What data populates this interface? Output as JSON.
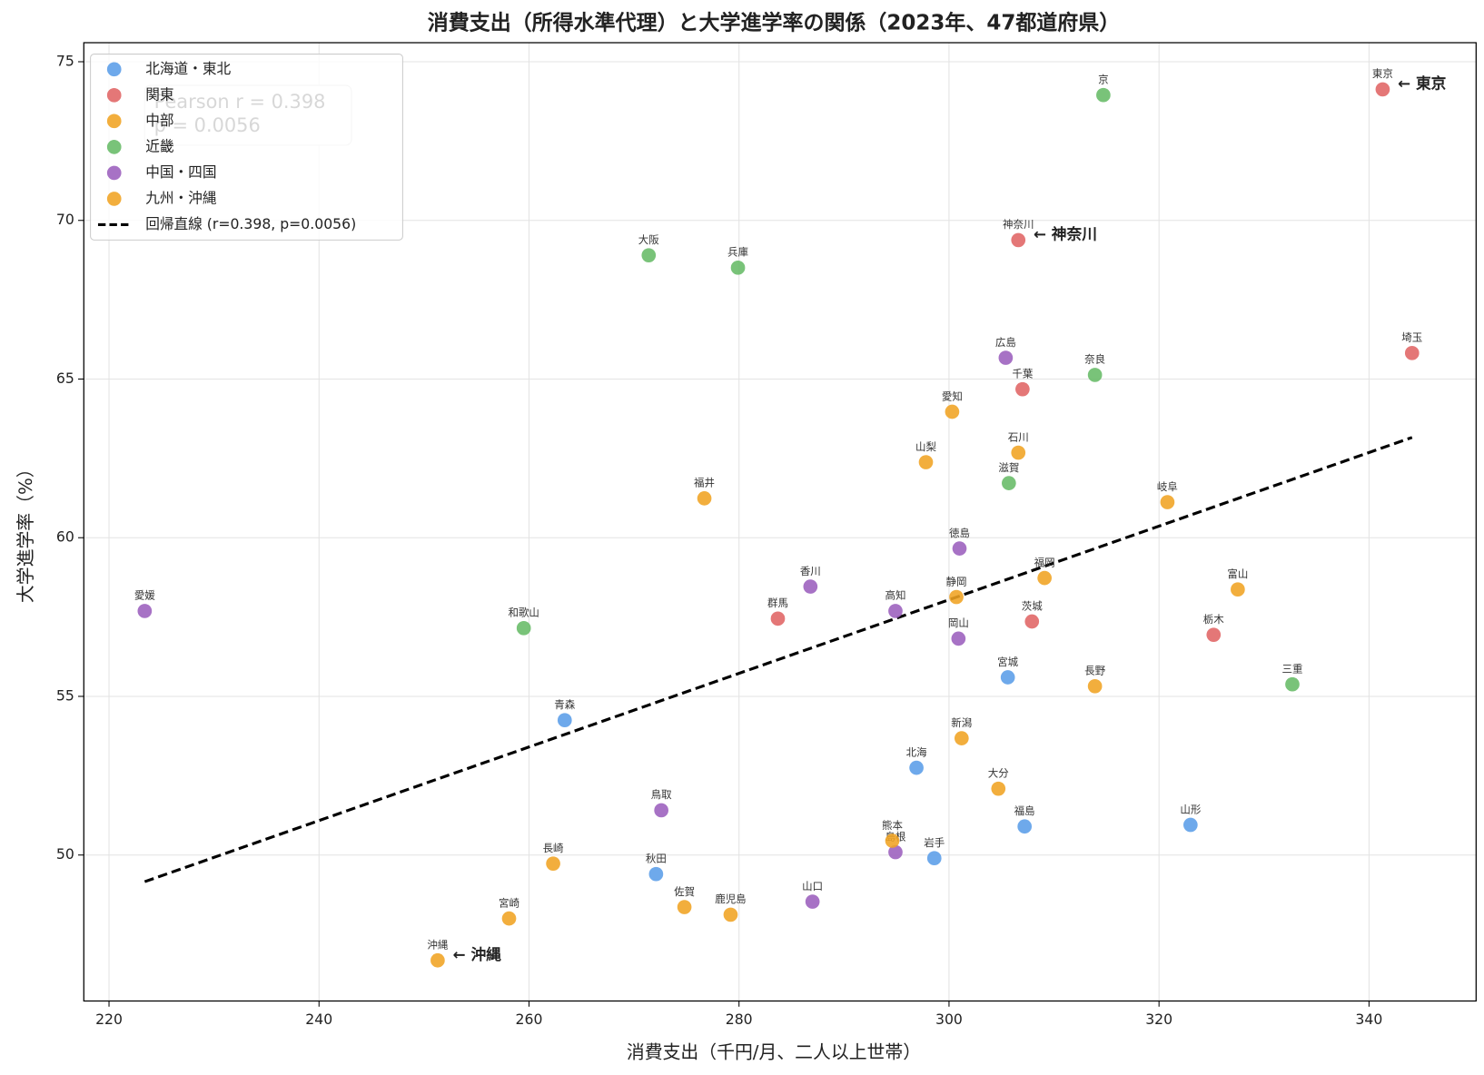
{
  "chart_data": {
    "type": "scatter",
    "title": "消費支出（所得水準代理）と大学進学率の関係（2023年、47都道府県）",
    "x_label": "消費支出（千円/月、二人以上世帯）",
    "y_label": "大学進学率（%）",
    "xlim": [
      217.6,
      350.2
    ],
    "ylim": [
      45.4,
      75.6
    ],
    "xticks": [
      220,
      240,
      260,
      280,
      300,
      320,
      340
    ],
    "yticks": [
      50,
      55,
      60,
      65,
      70,
      75
    ],
    "grid": true,
    "legend": "upper left",
    "series": [
      {
        "name": "北海道・東北",
        "color": "#5a9de8",
        "labels": [
          "青森",
          "北海",
          "宮城",
          "福島",
          "山形",
          "秋田",
          "岩手"
        ],
        "x": [
          263.4,
          296.9,
          305.6,
          307.2,
          323.0,
          272.1,
          298.6
        ],
        "values": [
          54.25,
          52.75,
          55.6,
          50.9,
          50.95,
          49.4,
          49.9
        ]
      },
      {
        "name": "関東",
        "color": "#e06464",
        "labels": [
          "東京",
          "神奈川",
          "埼玉",
          "千葉",
          "栃木",
          "茨城",
          "群馬"
        ],
        "x": [
          341.3,
          306.6,
          344.1,
          307.0,
          325.2,
          307.9,
          283.7
        ],
        "values": [
          74.13,
          69.38,
          65.82,
          64.68,
          56.94,
          57.36,
          57.45
        ]
      },
      {
        "name": "中部",
        "color": "#f0a322",
        "labels": [
          "愛知",
          "山梨",
          "石川",
          "福井",
          "岐阜",
          "静岡",
          "富山",
          "長野",
          "新潟"
        ],
        "x": [
          300.3,
          297.8,
          306.6,
          276.7,
          320.8,
          300.7,
          327.5,
          313.9,
          301.2
        ],
        "values": [
          63.97,
          62.38,
          62.68,
          61.24,
          61.12,
          58.13,
          58.37,
          55.32,
          53.68
        ]
      },
      {
        "name": "近畿",
        "color": "#66bb66",
        "labels": [
          "京",
          "大阪",
          "兵庫",
          "奈良",
          "滋賀",
          "和歌山",
          "三重"
        ],
        "x": [
          314.7,
          271.4,
          279.9,
          313.9,
          305.7,
          259.5,
          332.7
        ],
        "values": [
          73.95,
          68.9,
          68.51,
          65.13,
          61.72,
          57.15,
          55.38
        ]
      },
      {
        "name": "中国・四国",
        "color": "#9b5ebd",
        "labels": [
          "愛媛",
          "広島",
          "徳島",
          "香川",
          "高知",
          "岡山",
          "鳥取",
          "島根",
          "山口"
        ],
        "x": [
          223.4,
          305.4,
          301.0,
          286.8,
          294.9,
          300.9,
          272.6,
          294.9,
          287.0
        ],
        "values": [
          57.69,
          65.67,
          59.66,
          58.46,
          57.69,
          56.82,
          51.41,
          50.09,
          48.53
        ]
      },
      {
        "name": "九州・沖縄",
        "color": "#f0a322",
        "labels": [
          "福岡",
          "大分",
          "熊本",
          "長崎",
          "佐賀",
          "鹿児島",
          "宮崎",
          "沖縄"
        ],
        "x": [
          309.1,
          304.7,
          294.6,
          262.3,
          274.8,
          279.2,
          258.1,
          251.3
        ],
        "values": [
          58.73,
          52.09,
          50.45,
          49.73,
          48.36,
          48.12,
          48.0,
          46.68
        ]
      }
    ],
    "regression": {
      "name": "回帰直線 (r=0.398, p=0.0056)",
      "color": "#000000",
      "x": [
        223.4,
        344.1
      ],
      "values": [
        49.16,
        63.16
      ]
    },
    "stats_box": [
      "Pearson r = 0.398",
      "p = 0.0056"
    ],
    "annotations": [
      {
        "text": "← 東京",
        "x": 341.3,
        "y": 74.13,
        "color": "#d62728"
      },
      {
        "text": "← 神奈川",
        "x": 306.6,
        "y": 69.38,
        "color": "#d62728"
      },
      {
        "text": "← 沖縄",
        "x": 251.3,
        "y": 46.68,
        "color": "#d62728"
      }
    ]
  }
}
